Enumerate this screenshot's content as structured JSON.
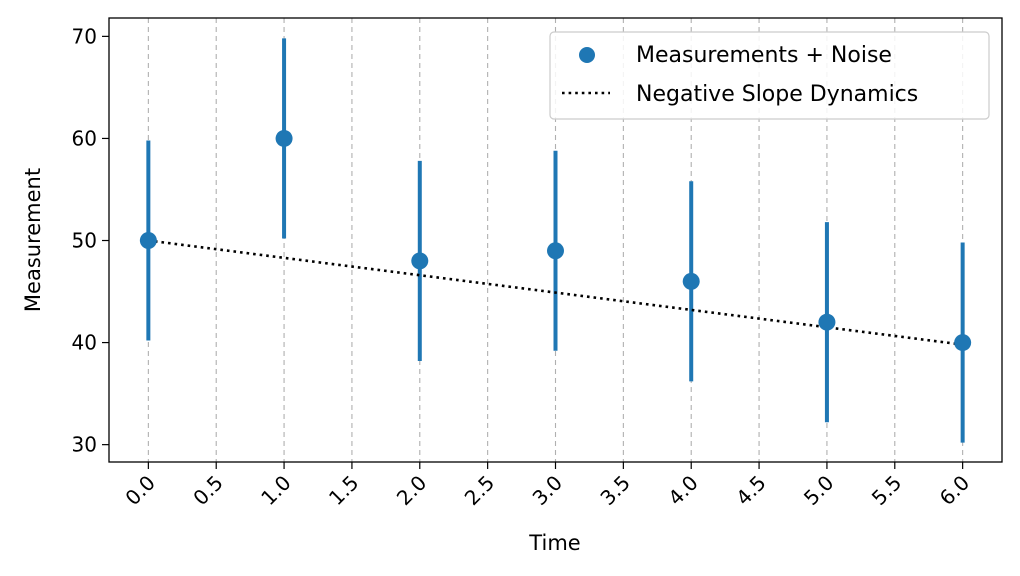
{
  "chart_data": {
    "type": "scatter",
    "xlabel": "Time",
    "ylabel": "Measurement",
    "xlim": [
      -0.29,
      6.29
    ],
    "ylim": [
      28.3,
      71.8
    ],
    "xticks": [
      "0.0",
      "0.5",
      "1.0",
      "1.5",
      "2.0",
      "2.5",
      "3.0",
      "3.5",
      "4.0",
      "4.5",
      "5.0",
      "5.5",
      "6.0"
    ],
    "yticks": [
      "30",
      "40",
      "50",
      "60",
      "70"
    ],
    "grid": "x-dashed",
    "legend_position": "top-right",
    "series": [
      {
        "name": "Measurements + Noise",
        "kind": "scatter-errorbar",
        "color": "#1f77b4",
        "x": [
          0,
          1,
          2,
          3,
          4,
          5,
          6
        ],
        "y": [
          50,
          60,
          48,
          49,
          46,
          42,
          40
        ],
        "yerr": [
          9.8,
          9.8,
          9.8,
          9.8,
          9.8,
          9.8,
          9.8
        ]
      },
      {
        "name": "Negative Slope Dynamics",
        "kind": "line-dotted",
        "color": "#000000",
        "x": [
          0,
          6
        ],
        "y": [
          50,
          39.8
        ]
      }
    ]
  }
}
